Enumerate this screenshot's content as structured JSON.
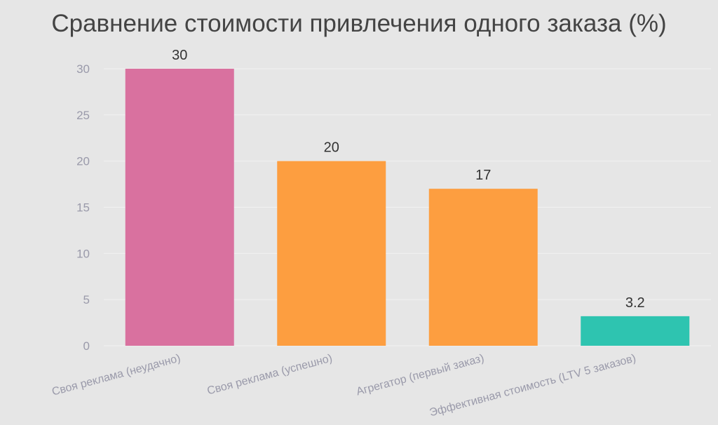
{
  "chart_data": {
    "type": "bar",
    "title": "Сравнение стоимости привлечения одного заказа (%)",
    "categories": [
      "Своя реклама (неудачно)",
      "Своя реклама (успешно)",
      "Агрегатор (первый заказ)",
      "Эффективная стоимость (LTV 5 заказов)"
    ],
    "values": [
      30,
      20,
      17,
      3.2
    ],
    "value_labels": [
      "30",
      "20",
      "17",
      "3.2"
    ],
    "colors": [
      "#d9719f",
      "#fd9e40",
      "#fd9e40",
      "#2ec4b0"
    ],
    "xlabel": "",
    "ylabel": "",
    "ylim": [
      0,
      30
    ],
    "yticks": [
      0,
      5,
      10,
      15,
      20,
      25,
      30
    ],
    "grid": true,
    "legend": "none"
  }
}
